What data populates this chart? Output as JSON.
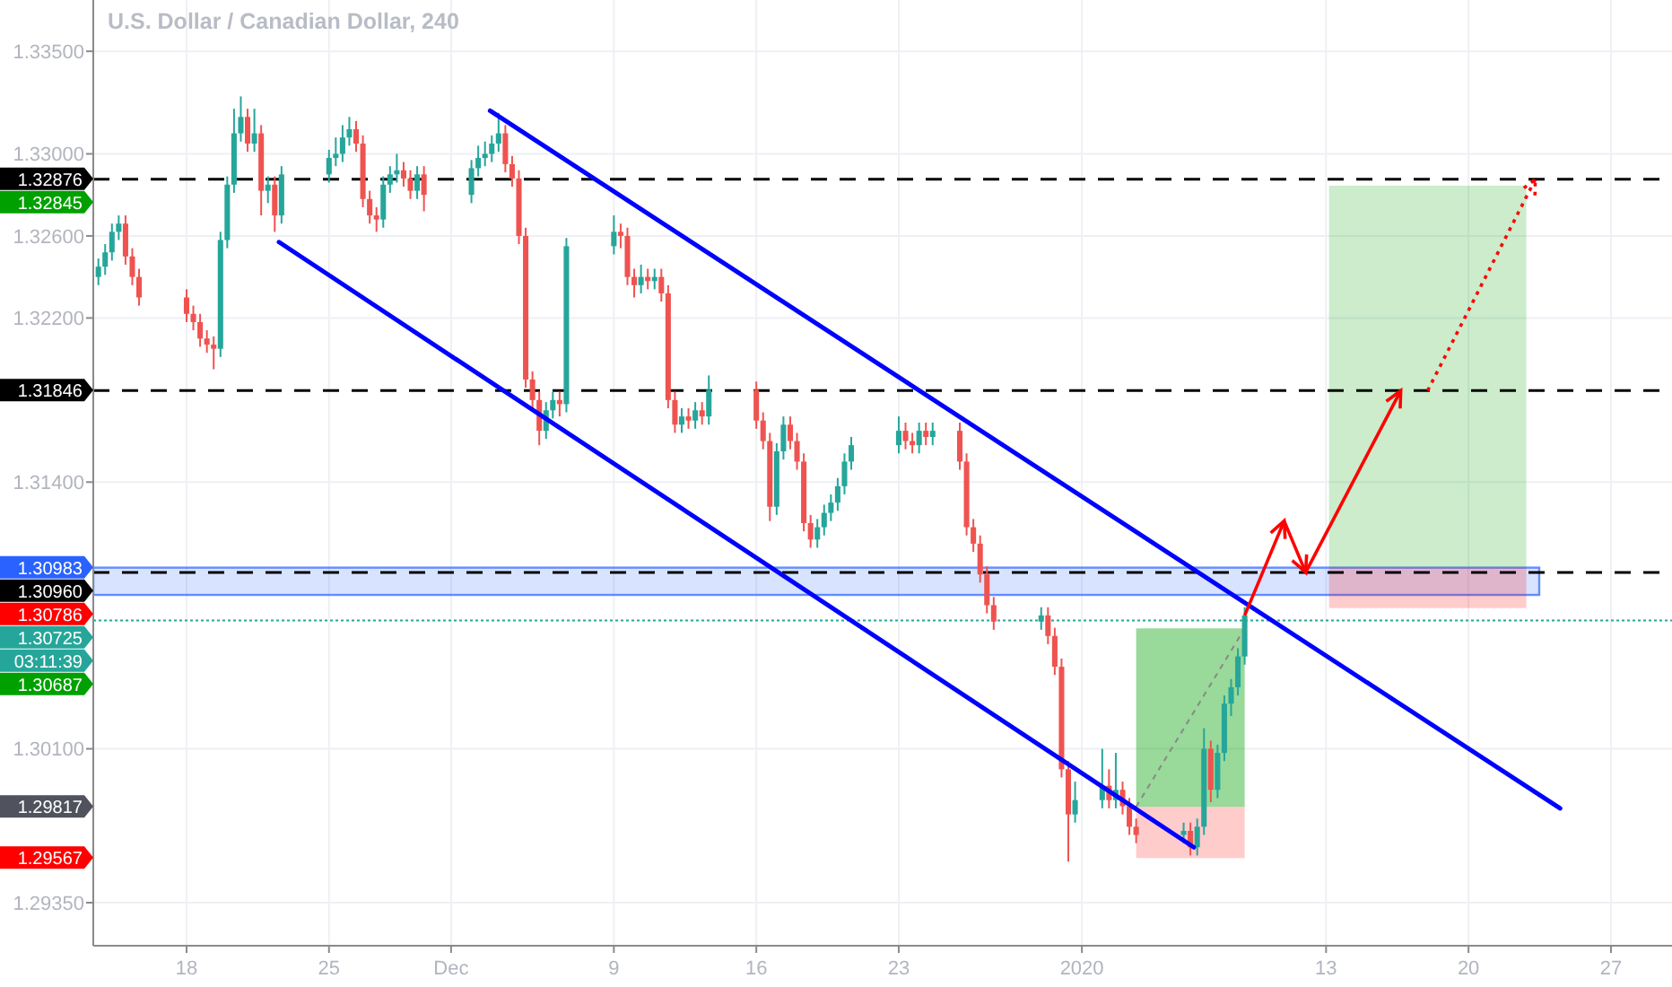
{
  "chart_data": {
    "type": "candlestick",
    "title": "U.S. Dollar / Canadian Dollar, 240",
    "x": [
      "2019-11-13T16:00",
      "2019-11-14T00:00",
      "2019-11-14T08:00",
      "2019-11-14T16:00",
      "2019-11-15T00:00",
      "2019-11-15T08:00",
      "2019-11-15T16:00",
      "2019-11-18T00:00",
      "2019-11-18T08:00",
      "2019-11-18T16:00",
      "2019-11-19T00:00",
      "2019-11-19T08:00",
      "2019-11-19T16:00",
      "2019-11-20T00:00",
      "2019-11-20T08:00",
      "2019-11-20T16:00",
      "2019-11-21T00:00",
      "2019-11-21T08:00",
      "2019-11-21T16:00",
      "2019-11-22T00:00",
      "2019-11-22T08:00",
      "2019-11-22T16:00",
      "2019-11-25T00:00",
      "2019-11-25T08:00",
      "2019-11-25T16:00",
      "2019-11-26T00:00",
      "2019-11-26T08:00",
      "2019-11-26T16:00",
      "2019-11-27T00:00",
      "2019-11-27T08:00",
      "2019-11-27T16:00",
      "2019-11-28T00:00",
      "2019-11-28T08:00",
      "2019-11-28T16:00",
      "2019-11-29T00:00",
      "2019-11-29T08:00",
      "2019-11-29T16:00",
      "2019-12-02T00:00",
      "2019-12-02T08:00",
      "2019-12-02T16:00",
      "2019-12-03T00:00",
      "2019-12-03T08:00",
      "2019-12-03T16:00",
      "2019-12-04T00:00",
      "2019-12-04T08:00",
      "2019-12-04T16:00",
      "2019-12-05T00:00",
      "2019-12-05T08:00",
      "2019-12-05T16:00",
      "2019-12-06T00:00",
      "2019-12-06T08:00",
      "2019-12-06T16:00",
      "2019-12-09T00:00",
      "2019-12-09T08:00",
      "2019-12-09T16:00",
      "2019-12-10T00:00",
      "2019-12-10T08:00",
      "2019-12-10T16:00",
      "2019-12-11T00:00",
      "2019-12-11T08:00",
      "2019-12-11T16:00",
      "2019-12-12T00:00",
      "2019-12-12T08:00",
      "2019-12-12T16:00",
      "2019-12-13T00:00",
      "2019-12-13T08:00",
      "2019-12-13T16:00",
      "2019-12-16T00:00",
      "2019-12-16T08:00",
      "2019-12-16T16:00",
      "2019-12-17T00:00",
      "2019-12-17T08:00",
      "2019-12-17T16:00",
      "2019-12-18T00:00",
      "2019-12-18T08:00",
      "2019-12-18T16:00",
      "2019-12-19T00:00",
      "2019-12-19T08:00",
      "2019-12-19T16:00",
      "2019-12-20T00:00",
      "2019-12-20T08:00",
      "2019-12-20T16:00",
      "2019-12-23T00:00",
      "2019-12-23T08:00",
      "2019-12-23T16:00",
      "2019-12-24T00:00",
      "2019-12-24T08:00",
      "2019-12-24T16:00",
      "2019-12-26T00:00",
      "2019-12-26T08:00",
      "2019-12-26T16:00",
      "2019-12-27T00:00",
      "2019-12-27T08:00",
      "2019-12-27T16:00",
      "2019-12-30T00:00",
      "2019-12-30T08:00",
      "2019-12-30T16:00",
      "2019-12-31T00:00",
      "2019-12-31T08:00",
      "2019-12-31T16:00",
      "2020-01-02T00:00",
      "2020-01-02T08:00",
      "2020-01-02T16:00",
      "2020-01-03T00:00",
      "2020-01-03T08:00",
      "2020-01-03T16:00",
      "2020-01-06T00:00",
      "2020-01-06T08:00",
      "2020-01-06T16:00",
      "2020-01-07T00:00",
      "2020-01-07T08:00",
      "2020-01-07T16:00",
      "2020-01-08T00:00",
      "2020-01-08T08:00",
      "2020-01-08T16:00",
      "2020-01-09T00:00"
    ],
    "ohlc": [
      [
        1.324,
        1.3249,
        1.3236,
        1.3245
      ],
      [
        1.3245,
        1.3256,
        1.3241,
        1.3252
      ],
      [
        1.3252,
        1.3266,
        1.3248,
        1.3262
      ],
      [
        1.3262,
        1.327,
        1.3258,
        1.3266
      ],
      [
        1.3266,
        1.327,
        1.3246,
        1.325
      ],
      [
        1.325,
        1.3254,
        1.3236,
        1.324
      ],
      [
        1.324,
        1.3244,
        1.3226,
        1.323
      ],
      [
        1.323,
        1.3234,
        1.3218,
        1.3222
      ],
      [
        1.3222,
        1.3226,
        1.3214,
        1.3218
      ],
      [
        1.3218,
        1.3222,
        1.3206,
        1.321
      ],
      [
        1.321,
        1.3214,
        1.3203,
        1.3207
      ],
      [
        1.3207,
        1.3211,
        1.3195,
        1.3205
      ],
      [
        1.3205,
        1.3262,
        1.3201,
        1.3258
      ],
      [
        1.3258,
        1.3289,
        1.3254,
        1.3285
      ],
      [
        1.3285,
        1.3322,
        1.3281,
        1.331
      ],
      [
        1.331,
        1.3328,
        1.3306,
        1.3318
      ],
      [
        1.3318,
        1.3322,
        1.3301,
        1.3305
      ],
      [
        1.3305,
        1.3322,
        1.3301,
        1.331
      ],
      [
        1.331,
        1.3314,
        1.327,
        1.3282
      ],
      [
        1.3282,
        1.3289,
        1.3276,
        1.3285
      ],
      [
        1.3285,
        1.3289,
        1.3262,
        1.327
      ],
      [
        1.327,
        1.3294,
        1.3266,
        1.329
      ],
      [
        1.329,
        1.3302,
        1.3286,
        1.3298
      ],
      [
        1.3298,
        1.3308,
        1.3294,
        1.33
      ],
      [
        1.33,
        1.3314,
        1.3296,
        1.3308
      ],
      [
        1.3308,
        1.3318,
        1.3304,
        1.3312
      ],
      [
        1.3312,
        1.3316,
        1.3301,
        1.3305
      ],
      [
        1.3305,
        1.3309,
        1.3274,
        1.3278
      ],
      [
        1.3278,
        1.3282,
        1.3266,
        1.327
      ],
      [
        1.327,
        1.3274,
        1.3262,
        1.3268
      ],
      [
        1.3268,
        1.3289,
        1.3264,
        1.3285
      ],
      [
        1.3285,
        1.3294,
        1.3281,
        1.329
      ],
      [
        1.329,
        1.33,
        1.3286,
        1.3292
      ],
      [
        1.3292,
        1.3296,
        1.3284,
        1.3288
      ],
      [
        1.3288,
        1.3292,
        1.3278,
        1.3282
      ],
      [
        1.3282,
        1.3294,
        1.3278,
        1.329
      ],
      [
        1.329,
        1.3294,
        1.3272,
        1.328
      ],
      [
        1.328,
        1.3297,
        1.3276,
        1.3293
      ],
      [
        1.3293,
        1.3304,
        1.3289,
        1.3298
      ],
      [
        1.3298,
        1.3306,
        1.3294,
        1.33
      ],
      [
        1.33,
        1.3309,
        1.3296,
        1.3305
      ],
      [
        1.3305,
        1.332,
        1.3301,
        1.331
      ],
      [
        1.331,
        1.3314,
        1.3291,
        1.3295
      ],
      [
        1.3295,
        1.3299,
        1.3284,
        1.3288
      ],
      [
        1.3288,
        1.3292,
        1.3256,
        1.326
      ],
      [
        1.326,
        1.3264,
        1.3186,
        1.319
      ],
      [
        1.319,
        1.3194,
        1.3176,
        1.318
      ],
      [
        1.318,
        1.3184,
        1.3158,
        1.3165
      ],
      [
        1.3165,
        1.3179,
        1.3161,
        1.3175
      ],
      [
        1.3175,
        1.3184,
        1.3171,
        1.318
      ],
      [
        1.318,
        1.3184,
        1.3172,
        1.3178
      ],
      [
        1.3178,
        1.3259,
        1.3174,
        1.3255
      ],
      [
        1.3255,
        1.327,
        1.3251,
        1.3262
      ],
      [
        1.3262,
        1.3266,
        1.3254,
        1.326
      ],
      [
        1.326,
        1.3264,
        1.3236,
        1.324
      ],
      [
        1.324,
        1.3244,
        1.323,
        1.3236
      ],
      [
        1.3236,
        1.3246,
        1.3232,
        1.324
      ],
      [
        1.324,
        1.3244,
        1.3234,
        1.3238
      ],
      [
        1.3238,
        1.3244,
        1.3234,
        1.324
      ],
      [
        1.324,
        1.3244,
        1.3228,
        1.3232
      ],
      [
        1.3232,
        1.3236,
        1.3176,
        1.318
      ],
      [
        1.318,
        1.3184,
        1.3164,
        1.3168
      ],
      [
        1.3168,
        1.3176,
        1.3164,
        1.3172
      ],
      [
        1.3172,
        1.3176,
        1.3166,
        1.317
      ],
      [
        1.317,
        1.3179,
        1.3166,
        1.3175
      ],
      [
        1.3175,
        1.3179,
        1.3168,
        1.3172
      ],
      [
        1.3172,
        1.3192,
        1.3168,
        1.3185
      ],
      [
        1.3185,
        1.3189,
        1.3166,
        1.317
      ],
      [
        1.317,
        1.3174,
        1.3156,
        1.316
      ],
      [
        1.316,
        1.3164,
        1.3121,
        1.3128
      ],
      [
        1.3128,
        1.3159,
        1.3124,
        1.3155
      ],
      [
        1.3155,
        1.3172,
        1.3151,
        1.3168
      ],
      [
        1.3168,
        1.3172,
        1.3156,
        1.316
      ],
      [
        1.316,
        1.3164,
        1.3146,
        1.315
      ],
      [
        1.315,
        1.3154,
        1.3116,
        1.312
      ],
      [
        1.312,
        1.3124,
        1.3108,
        1.3112
      ],
      [
        1.3112,
        1.3122,
        1.3108,
        1.3118
      ],
      [
        1.3118,
        1.3129,
        1.3114,
        1.3125
      ],
      [
        1.3125,
        1.3134,
        1.3121,
        1.313
      ],
      [
        1.313,
        1.3142,
        1.3126,
        1.3138
      ],
      [
        1.3138,
        1.3154,
        1.3134,
        1.315
      ],
      [
        1.315,
        1.3162,
        1.3146,
        1.3158
      ],
      [
        1.3158,
        1.3172,
        1.3154,
        1.3165
      ],
      [
        1.3165,
        1.3169,
        1.3156,
        1.316
      ],
      [
        1.316,
        1.3164,
        1.3154,
        1.3158
      ],
      [
        1.3158,
        1.3169,
        1.3154,
        1.3165
      ],
      [
        1.3165,
        1.3169,
        1.3158,
        1.3162
      ],
      [
        1.3162,
        1.3169,
        1.3158,
        1.3165
      ],
      [
        1.3165,
        1.3169,
        1.3146,
        1.315
      ],
      [
        1.315,
        1.3154,
        1.3114,
        1.3118
      ],
      [
        1.3118,
        1.3122,
        1.3106,
        1.311
      ],
      [
        1.311,
        1.3114,
        1.3091,
        1.3095
      ],
      [
        1.3095,
        1.3099,
        1.3076,
        1.308
      ],
      [
        1.308,
        1.3084,
        1.3068,
        1.3072
      ],
      [
        1.3072,
        1.3079,
        1.3068,
        1.3075
      ],
      [
        1.3075,
        1.3079,
        1.3061,
        1.3065
      ],
      [
        1.3065,
        1.3069,
        1.3046,
        1.305
      ],
      [
        1.305,
        1.3054,
        1.2996,
        1.3
      ],
      [
        1.3,
        1.3004,
        1.2955,
        1.2978
      ],
      [
        1.2978,
        1.2994,
        1.2974,
        1.2985
      ],
      [
        1.2985,
        1.301,
        1.2981,
        1.2992
      ],
      [
        1.2992,
        1.3,
        1.2981,
        1.2985
      ],
      [
        1.2985,
        1.3008,
        1.2981,
        1.299
      ],
      [
        1.299,
        1.2994,
        1.2978,
        1.2982
      ],
      [
        1.2982,
        1.2986,
        1.2968,
        1.2972
      ],
      [
        1.2972,
        1.2976,
        1.2964,
        1.2968
      ],
      [
        1.2968,
        1.2974,
        1.2964,
        1.297
      ],
      [
        1.297,
        1.2974,
        1.2958,
        1.2962
      ],
      [
        1.2962,
        1.2976,
        1.2958,
        1.2972
      ],
      [
        1.2972,
        1.302,
        1.2968,
        1.301
      ],
      [
        1.301,
        1.3014,
        1.2984,
        1.299
      ],
      [
        1.299,
        1.3012,
        1.2986,
        1.3008
      ],
      [
        1.3008,
        1.3036,
        1.3004,
        1.3032
      ],
      [
        1.3032,
        1.3044,
        1.3026,
        1.304
      ],
      [
        1.304,
        1.3059,
        1.3036,
        1.3055
      ],
      [
        1.3055,
        1.3079,
        1.3051,
        1.3075
      ]
    ],
    "series": [
      {
        "type": "line",
        "color": "#0000ff",
        "x": [
          "2019-12-02T22:00",
          "2020-01-24T12:00"
        ],
        "values": [
          1.3321,
          1.2981
        ]
      },
      {
        "type": "line",
        "color": "#0000ff",
        "x": [
          "2019-11-22T13:00",
          "2020-01-06T12:00"
        ],
        "values": [
          1.3257,
          1.2962
        ]
      }
    ],
    "xlim": [
      "2019-11-13T10:00",
      "2020-01-30"
    ],
    "xticks": [
      {
        "value": "2019-11-18",
        "label": "18"
      },
      {
        "value": "2019-11-25",
        "label": "25"
      },
      {
        "value": "2019-12-01",
        "label": "Dec"
      },
      {
        "value": "2019-12-09",
        "label": "9"
      },
      {
        "value": "2019-12-16",
        "label": "16"
      },
      {
        "value": "2019-12-23",
        "label": "23"
      },
      {
        "value": "2020-01-01",
        "label": "2020"
      },
      {
        "value": "2020-01-13",
        "label": "13"
      },
      {
        "value": "2020-01-20",
        "label": "20"
      },
      {
        "value": "2020-01-27",
        "label": "27"
      }
    ],
    "ylim": [
      1.2914,
      1.3375
    ],
    "yticks": [
      {
        "value": 1.335,
        "label": "1.33500"
      },
      {
        "value": 1.33,
        "label": "1.33000"
      },
      {
        "value": 1.326,
        "label": "1.32600"
      },
      {
        "value": 1.322,
        "label": "1.32200"
      },
      {
        "value": 1.314,
        "label": "1.31400"
      },
      {
        "value": 1.301,
        "label": "1.30100"
      },
      {
        "value": 1.2935,
        "label": "1.29350"
      }
    ],
    "grid": true,
    "ref_lines": [
      {
        "axis": "y",
        "value": 1.32876,
        "label": "1.32876",
        "color": "#000000",
        "line_style": "dashed"
      },
      {
        "axis": "y",
        "value": 1.31846,
        "label": "1.31846",
        "color": "#000000",
        "line_style": "dashed"
      },
      {
        "axis": "y",
        "value": 1.3096,
        "label": "1.30960",
        "color": "#000000",
        "line_style": "dashed"
      },
      {
        "axis": "y",
        "value": 1.30725,
        "label": "1.30725",
        "color": "#26a69a",
        "line_style": "dotted"
      }
    ],
    "bands": [
      {
        "axis": "y",
        "from": 1.3085,
        "to": 1.30983,
        "label": "1.30983",
        "color": "#2962ff"
      },
      {
        "axis": "y",
        "from": 1.30983,
        "to": 1.32845,
        "color": "#00a000"
      },
      {
        "axis": "y",
        "from": 1.30786,
        "to": 1.30983,
        "color": "#ff0000"
      },
      {
        "axis": "y",
        "from": 1.29817,
        "to": 1.30687,
        "color": "#00a000"
      },
      {
        "axis": "y",
        "from": 1.29567,
        "to": 1.29817,
        "color": "#ff0000"
      }
    ],
    "annotations": [
      "1.32845",
      "1.30786",
      "1.30687",
      "1.29817",
      "1.29567",
      "03:11:39"
    ]
  }
}
